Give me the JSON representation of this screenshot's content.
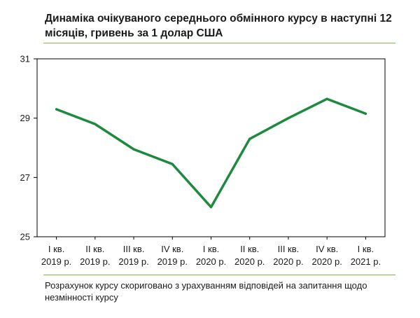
{
  "title": "Динаміка очікуваного середнього обмінного курсу в наступні 12 місяців, гривень за 1 долар США",
  "note": "Розрахунок курсу скориговано з урахуванням відповідей на запитання щодо незмінності курсу",
  "colors": {
    "line": "#1e8a3e",
    "rule": "#7dbb3c",
    "axis": "#000000"
  },
  "chart_data": {
    "type": "line",
    "title": "Динаміка очікуваного середнього обмінного курсу в наступні 12 місяців, гривень за 1 долар США",
    "categories": [
      [
        "I кв.",
        "2019 р."
      ],
      [
        "II кв.",
        "2019 р."
      ],
      [
        "III кв.",
        "2019 р."
      ],
      [
        "IV кв.",
        "2019 р."
      ],
      [
        "I кв.",
        "2020 р."
      ],
      [
        "II кв.",
        "2020 р."
      ],
      [
        "III кв.",
        "2020 р."
      ],
      [
        "IV кв.",
        "2020 р."
      ],
      [
        "I кв.",
        "2021 р."
      ]
    ],
    "series": [
      {
        "values": [
          29.3,
          28.8,
          27.95,
          27.45,
          26.0,
          28.3,
          29.0,
          29.65,
          29.15
        ]
      }
    ],
    "ylim": [
      25,
      31
    ],
    "yticks": [
      25,
      27,
      29,
      31
    ],
    "grid": false,
    "legend": "none"
  }
}
